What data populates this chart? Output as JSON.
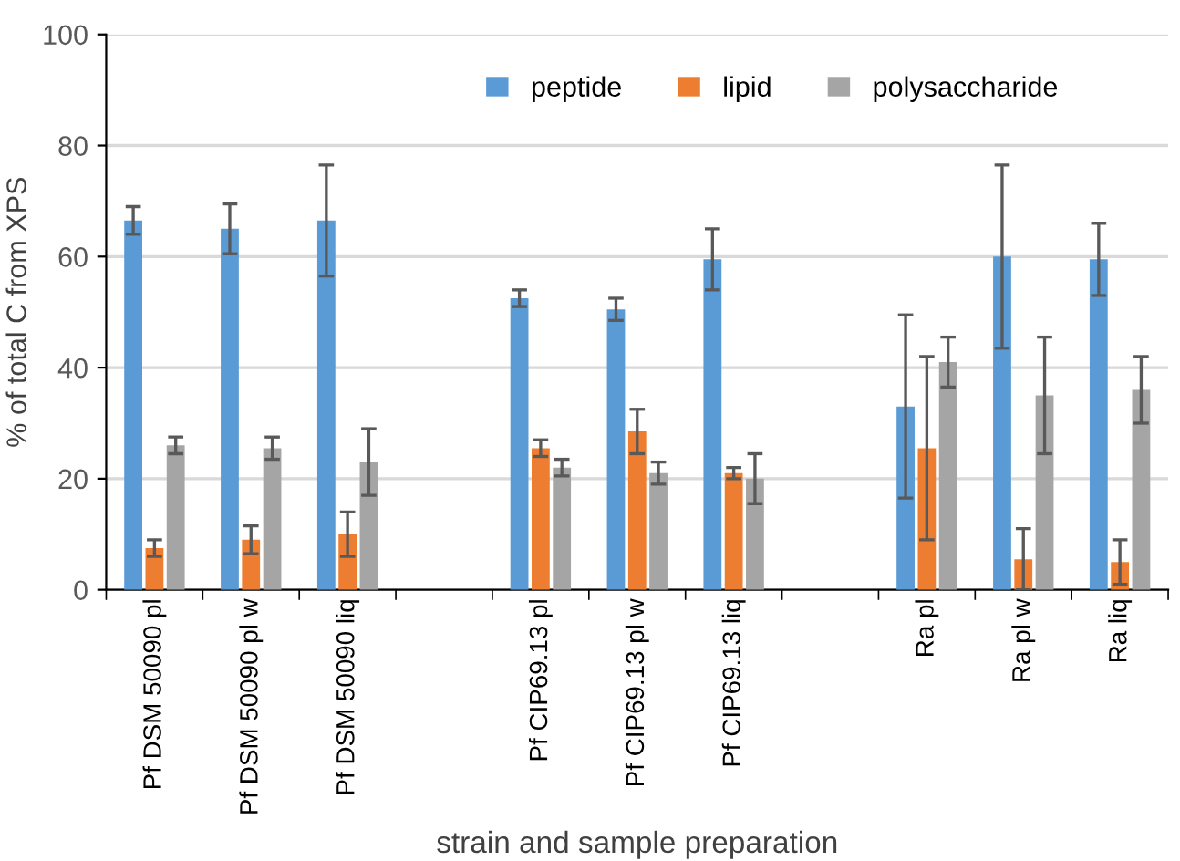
{
  "chart_data": {
    "type": "bar",
    "xlabel": "strain and sample preparation",
    "ylabel": "% of total C from XPS",
    "categories": [
      "Pf DSM 50090 pl",
      "Pf DSM 50090 pl w",
      "Pf DSM 50090 liq",
      null,
      "Pf CIP69.13 pl",
      "Pf CIP69.13 pl w",
      "Pf CIP69.13 liq",
      null,
      "Ra pl",
      "Ra pl w",
      "Ra liq"
    ],
    "series": [
      {
        "name": "peptide",
        "color": "#5b9bd5",
        "values": [
          66.5,
          65,
          66.5,
          null,
          52.5,
          50.5,
          59.5,
          null,
          33,
          60,
          59.5
        ],
        "errors": [
          2.5,
          4.5,
          10,
          null,
          1.5,
          2,
          5.5,
          null,
          16.5,
          16.5,
          6.5
        ]
      },
      {
        "name": "lipid",
        "color": "#ed7d31",
        "values": [
          7.5,
          9,
          10,
          null,
          25.5,
          28.5,
          21,
          null,
          25.5,
          5.5,
          5
        ],
        "errors": [
          1.5,
          2.5,
          4,
          null,
          1.5,
          4,
          1,
          null,
          16.5,
          5.5,
          4
        ]
      },
      {
        "name": "polysaccharide",
        "color": "#a5a5a5",
        "values": [
          26,
          25.5,
          23,
          null,
          22,
          21,
          20,
          null,
          41,
          35,
          36
        ],
        "errors": [
          1.5,
          2,
          6,
          null,
          1.5,
          2,
          4.5,
          null,
          4.5,
          10.5,
          6
        ]
      }
    ],
    "ylim": [
      0,
      100
    ],
    "yticks": [
      0,
      20,
      40,
      60,
      80,
      100
    ],
    "grid": "y",
    "legend": "top right"
  }
}
